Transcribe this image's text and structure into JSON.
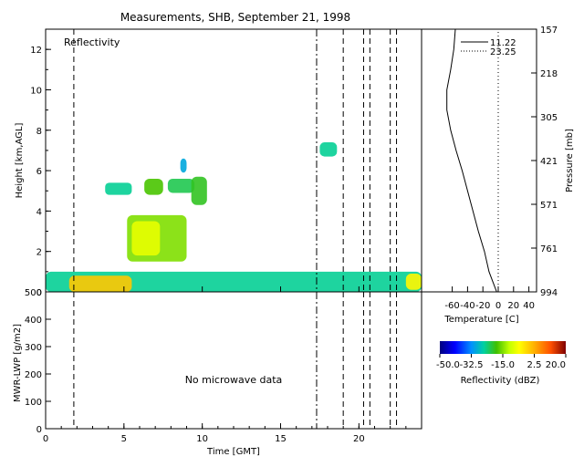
{
  "chart_data": [
    {
      "type": "heatmap",
      "title": "Measurements, SHB, September 21, 1998",
      "panel_label": "Reflectivity",
      "xlabel": "Time [GMT]",
      "ylabel": "Height [km,AGL]",
      "xlim": [
        0,
        24
      ],
      "ylim": [
        0,
        13
      ],
      "xticks": [
        "0",
        "5",
        "10",
        "15",
        "20"
      ],
      "yticks": [
        "0",
        "2",
        "4",
        "6",
        "8",
        "10",
        "12"
      ],
      "dashed_lines_x": [
        1.8,
        19.0,
        20.3,
        20.7,
        22.0,
        22.4
      ],
      "dashdot_lines_x": [
        17.3
      ],
      "regions": [
        {
          "t0": 0.0,
          "t1": 24.0,
          "h0": 0.0,
          "h1": 1.0,
          "dbz": -25
        },
        {
          "t0": 1.5,
          "t1": 5.5,
          "h0": 0.0,
          "h1": 0.8,
          "dbz": 0
        },
        {
          "t0": 5.2,
          "t1": 9.0,
          "h0": 1.5,
          "h1": 3.8,
          "dbz": -15
        },
        {
          "t0": 5.5,
          "t1": 7.3,
          "h0": 1.8,
          "h1": 3.5,
          "dbz": -8
        },
        {
          "t0": 3.8,
          "t1": 5.5,
          "h0": 4.8,
          "h1": 5.4,
          "dbz": -25
        },
        {
          "t0": 6.3,
          "t1": 7.5,
          "h0": 4.8,
          "h1": 5.6,
          "dbz": -18
        },
        {
          "t0": 7.8,
          "t1": 9.5,
          "h0": 4.9,
          "h1": 5.6,
          "dbz": -22
        },
        {
          "t0": 8.6,
          "t1": 9.0,
          "h0": 5.9,
          "h1": 6.6,
          "dbz": -30
        },
        {
          "t0": 9.3,
          "t1": 10.3,
          "h0": 4.3,
          "h1": 5.7,
          "dbz": -20
        },
        {
          "t0": 17.5,
          "t1": 18.6,
          "h0": 6.7,
          "h1": 7.4,
          "dbz": -25
        },
        {
          "t0": 23.0,
          "t1": 24.0,
          "h0": 0.1,
          "h1": 0.9,
          "dbz": -5
        }
      ]
    },
    {
      "type": "line",
      "ylabel": "Pressure [mb]",
      "xlabel": "Temperature [C]",
      "xticks": [
        "-60",
        "-40",
        "-20",
        "0",
        "20",
        "40"
      ],
      "xlim": [
        -100,
        50
      ],
      "pressure_ticks": [
        "157",
        "218",
        "305",
        "421",
        "571",
        "761",
        "994"
      ],
      "series": [
        {
          "name": "11.22",
          "style": "solid",
          "height_km": [
            0,
            0.5,
            1,
            2,
            3,
            4,
            5,
            6,
            7,
            8,
            9,
            10,
            11,
            12,
            13
          ],
          "temperature_c": [
            -2,
            -7,
            -12,
            -18,
            -26,
            -33,
            -40,
            -47,
            -55,
            -62,
            -67,
            -67,
            -62,
            -58,
            -56
          ]
        },
        {
          "name": "23.25",
          "style": "dotted",
          "height_km": [
            0,
            13
          ],
          "temperature_c": [
            0,
            0
          ]
        }
      ]
    },
    {
      "type": "line",
      "xlabel": "Time [GMT]",
      "ylabel": "MWR-LWP [g/m2]",
      "xlim": [
        0,
        24
      ],
      "ylim": [
        0,
        500
      ],
      "xticks": [
        "0",
        "5",
        "10",
        "15",
        "20"
      ],
      "yticks": [
        "0",
        "100",
        "200",
        "300",
        "400",
        "500"
      ],
      "annotation": "No microwave data",
      "series": []
    }
  ],
  "colorbar": {
    "label": "Reflectivity (dBZ)",
    "tick_labels": [
      "-50.0",
      "-32.5",
      "-15.0",
      "2.5",
      "20.0"
    ],
    "range": [
      -50,
      20
    ]
  }
}
